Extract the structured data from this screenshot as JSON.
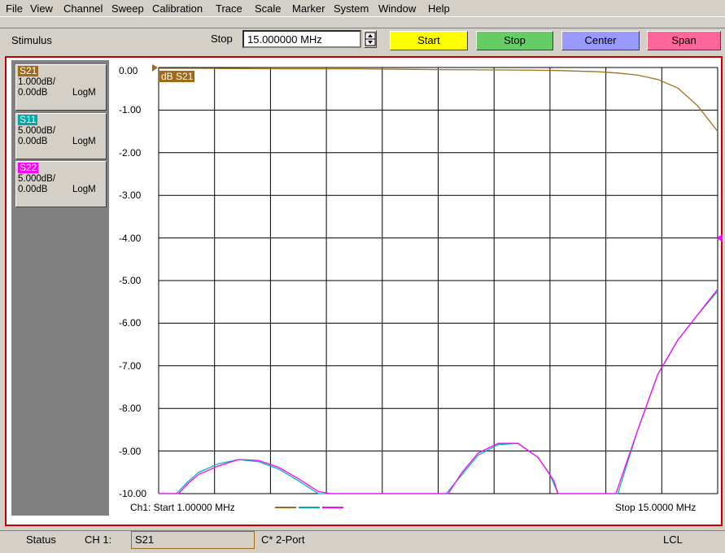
{
  "menu": [
    "File",
    "View",
    "Channel",
    "Sweep",
    "Calibration",
    "Trace",
    "Scale",
    "Marker",
    "System",
    "Window",
    "Help"
  ],
  "toolbar": {
    "section_label": "Stimulus",
    "field_label": "Stop",
    "field_value": "15.000000 MHz",
    "buttons": [
      {
        "label": "Start",
        "color": "#ffff00"
      },
      {
        "label": "Stop",
        "color": "#66cc66"
      },
      {
        "label": "Center",
        "color": "#9999ff"
      },
      {
        "label": "Span",
        "color": "#ff6699"
      }
    ]
  },
  "traces": [
    {
      "name": "S21",
      "scale": "1.000dB/",
      "ref": "0.00dB",
      "format": "LogM",
      "color": "#a06a1a"
    },
    {
      "name": "S11",
      "scale": "5.000dB/",
      "ref": "0.00dB",
      "format": "LogM",
      "color": "#00b0b0"
    },
    {
      "name": "S22",
      "scale": "5.000dB/",
      "ref": "0.00dB",
      "format": "LogM",
      "color": "#ff00ff"
    }
  ],
  "chart_data": {
    "type": "line",
    "y_tick_labels": [
      "0.00",
      "-1.00",
      "-2.00",
      "-3.00",
      "-4.00",
      "-5.00",
      "-6.00",
      "-7.00",
      "-8.00",
      "-9.00",
      "-10.00"
    ],
    "ylim": [
      -10,
      0
    ],
    "xlim": [
      1,
      15
    ],
    "x_unit": "MHz",
    "grid": true,
    "active_trace_label": "dB S21",
    "start_label": "Ch1: Start  1.00000 MHz",
    "stop_label": "Stop  15.0000 MHz",
    "series": [
      {
        "name": "S21",
        "color": "#a0701a",
        "x": [
          1,
          2,
          4,
          6,
          8,
          10,
          11,
          12,
          12.5,
          13,
          13.5,
          14,
          14.5,
          15
        ],
        "y": [
          -0.02,
          -0.02,
          -0.03,
          -0.03,
          -0.05,
          -0.06,
          -0.07,
          -0.1,
          -0.13,
          -0.18,
          -0.28,
          -0.48,
          -0.9,
          -1.5
        ]
      },
      {
        "name": "S11",
        "color": "#00b8b8",
        "x": [
          1,
          1.45,
          1.7,
          2,
          2.5,
          3,
          3.5,
          4,
          4.5,
          5,
          5.2,
          5.5,
          6,
          7,
          8,
          8.2,
          8.6,
          9,
          9.5,
          10,
          10.5,
          10.8,
          11,
          11.5,
          12,
          12.5,
          13,
          13.5,
          14,
          14.5,
          15
        ],
        "y": [
          -10,
          -10,
          -9.75,
          -9.5,
          -9.3,
          -9.2,
          -9.25,
          -9.42,
          -9.7,
          -10,
          -10,
          -10,
          -10,
          -10,
          -10,
          -10,
          -9.55,
          -9.1,
          -8.85,
          -8.82,
          -9.15,
          -9.55,
          -10,
          -10,
          -10,
          -10,
          -8.5,
          -7.2,
          -6.4,
          -5.8,
          -5.25
        ]
      },
      {
        "name": "S22",
        "color": "#ff00ff",
        "x": [
          1,
          1.5,
          1.75,
          2,
          2.5,
          3,
          3.5,
          4,
          4.5,
          5,
          5.3,
          6,
          7,
          8,
          8.25,
          8.6,
          9,
          9.5,
          10,
          10.5,
          10.9,
          11,
          11.5,
          12,
          12.45,
          13,
          13.5,
          14,
          14.5,
          15
        ],
        "y": [
          -10,
          -10,
          -9.75,
          -9.55,
          -9.35,
          -9.2,
          -9.22,
          -9.38,
          -9.65,
          -9.95,
          -10,
          -10,
          -10,
          -10,
          -10,
          -9.5,
          -9.05,
          -8.82,
          -8.82,
          -9.15,
          -9.7,
          -10,
          -10,
          -10,
          -10,
          -8.5,
          -7.2,
          -6.4,
          -5.8,
          -5.2
        ]
      }
    ]
  },
  "status": {
    "label": "Status",
    "channel": "CH 1:",
    "trace": "S21",
    "cal": "C* 2-Port",
    "mode": "LCL"
  }
}
